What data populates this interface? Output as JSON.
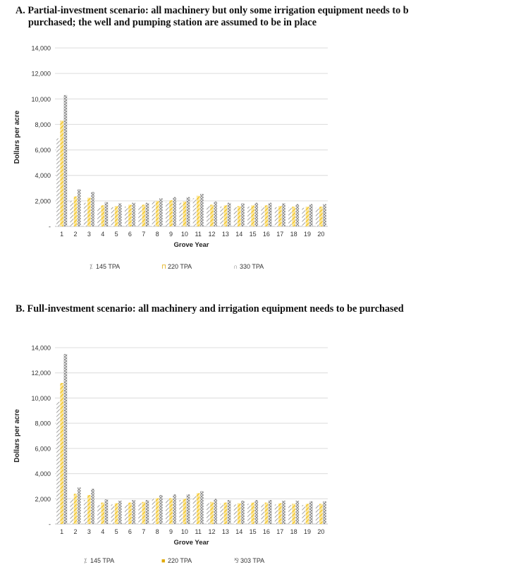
{
  "panels": [
    {
      "title_line1": "A.  Partial-investment scenario: all machinery but only some irrigation equipment needs to b",
      "title_line2": "purchased; the well and pumping station are assumed to be in place"
    },
    {
      "title_line1": "B.  Full-investment scenario: all machinery and irrigation equipment needs to be purchased",
      "title_line2": ""
    }
  ],
  "colors": {
    "series1": "#8a8a8a",
    "series2": "#f2c21b",
    "series3": "#8a8a8a",
    "grid": "#dcdcdc",
    "axis_text": "#333333"
  },
  "chart_data": [
    {
      "type": "bar",
      "title": "",
      "xlabel": "Grove Year",
      "ylabel": "Dollars per acre",
      "ylim": [
        0,
        14000
      ],
      "yticks": [
        "-",
        "2,000",
        "4,000",
        "6,000",
        "8,000",
        "10,000",
        "12,000",
        "14,000"
      ],
      "categories": [
        "1",
        "2",
        "3",
        "4",
        "5",
        "6",
        "7",
        "8",
        "9",
        "10",
        "11",
        "12",
        "13",
        "14",
        "15",
        "16",
        "17",
        "18",
        "19",
        "20"
      ],
      "grid": true,
      "legend_position": "bottom",
      "series": [
        {
          "name": "145 TPA",
          "legend_marker": "⁒",
          "pattern": "diag",
          "values": [
            6900,
            2000,
            1850,
            1450,
            1500,
            1550,
            1600,
            1950,
            1900,
            1850,
            2200,
            1600,
            1550,
            1500,
            1550,
            1550,
            1500,
            1500,
            1450,
            1450
          ]
        },
        {
          "name": "220 TPA",
          "legend_marker": "⊓",
          "pattern": "yellow",
          "values": [
            8300,
            2350,
            2250,
            1650,
            1600,
            1700,
            1700,
            2000,
            2050,
            1950,
            2400,
            1700,
            1650,
            1600,
            1650,
            1650,
            1600,
            1550,
            1550,
            1550
          ]
        },
        {
          "name": "330 TPA",
          "legend_marker": "∩",
          "pattern": "cross",
          "values": [
            10300,
            2900,
            2700,
            1900,
            1800,
            1850,
            1850,
            2200,
            2300,
            2300,
            2550,
            1950,
            1850,
            1800,
            1850,
            1850,
            1800,
            1750,
            1750,
            1750
          ]
        }
      ]
    },
    {
      "type": "bar",
      "title": "",
      "xlabel": "Grove Year",
      "ylabel": "Dollars per acre",
      "ylim": [
        0,
        14000
      ],
      "yticks": [
        "-",
        "2,000",
        "4,000",
        "6,000",
        "8,000",
        "10,000",
        "12,000",
        "14,000"
      ],
      "categories": [
        "1",
        "2",
        "3",
        "4",
        "5",
        "6",
        "7",
        "8",
        "9",
        "10",
        "11",
        "12",
        "13",
        "14",
        "15",
        "16",
        "17",
        "18",
        "19",
        "20"
      ],
      "grid": true,
      "legend_position": "bottom",
      "series": [
        {
          "name": "145 TPA",
          "legend_marker": "⁒",
          "pattern": "diag",
          "values": [
            9700,
            2000,
            1900,
            1500,
            1550,
            1550,
            1650,
            2000,
            1950,
            1900,
            2250,
            1650,
            1600,
            1550,
            1600,
            1550,
            1550,
            1500,
            1500,
            1500
          ]
        },
        {
          "name": "220 TPA",
          "legend_marker": "■",
          "pattern": "yellow",
          "values": [
            11200,
            2400,
            2300,
            1700,
            1650,
            1700,
            1750,
            2050,
            2050,
            2000,
            2450,
            1750,
            1700,
            1650,
            1700,
            1700,
            1650,
            1600,
            1600,
            1600
          ]
        },
        {
          "name": "303 TPA",
          "legend_marker": "⅋",
          "pattern": "cross",
          "values": [
            13500,
            2900,
            2800,
            1950,
            1850,
            1900,
            1900,
            2300,
            2350,
            2350,
            2600,
            2000,
            1900,
            1850,
            1900,
            1900,
            1850,
            1850,
            1800,
            1800
          ]
        }
      ]
    }
  ]
}
